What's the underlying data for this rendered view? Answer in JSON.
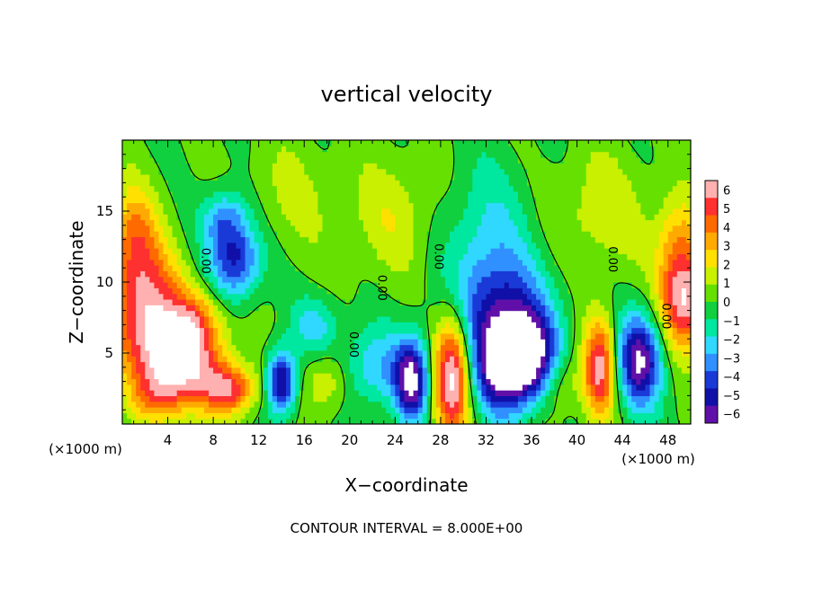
{
  "chart_data": {
    "type": "heatmap",
    "title": "vertical velocity",
    "xlabel": "X−coordinate",
    "ylabel": "Z−coordinate",
    "x_unit_label": "(×1000 m)",
    "x_unit_label_right": "(×1000 m)",
    "footer": "CONTOUR INTERVAL = 8.000E+00",
    "xlim": [
      0,
      50
    ],
    "ylim": [
      0,
      20
    ],
    "x_ticks": [
      "4",
      "8",
      "12",
      "16",
      "20",
      "24",
      "28",
      "32",
      "36",
      "40",
      "44",
      "48"
    ],
    "x_tick_values": [
      4,
      8,
      12,
      16,
      20,
      24,
      28,
      32,
      36,
      40,
      44,
      48
    ],
    "y_ticks": [
      "5",
      "10",
      "15"
    ],
    "y_tick_values": [
      5,
      10,
      15
    ],
    "colorbar": {
      "ticks": [
        "6",
        "5",
        "4",
        "3",
        "2",
        "1",
        "0",
        "−1",
        "−2",
        "−3",
        "−4",
        "−5",
        "−6"
      ],
      "range": [
        -6,
        6
      ],
      "colors": [
        "#ffb0b0",
        "#ff3030",
        "#ff6a00",
        "#ffaa00",
        "#ffe000",
        "#c8f000",
        "#66e000",
        "#10d040",
        "#00e8a0",
        "#30d8ff",
        "#3090ff",
        "#1a3ad8",
        "#1010a8",
        "#6010a8"
      ]
    },
    "contour_labels": [
      {
        "text": "0.00",
        "x": 7.0,
        "z": 11.5
      },
      {
        "text": "0.00",
        "x": 22.5,
        "z": 9.6
      },
      {
        "text": "0.00",
        "x": 20.0,
        "z": 5.6
      },
      {
        "text": "0.00",
        "x": 27.5,
        "z": 11.8
      },
      {
        "text": "0.00",
        "x": 42.8,
        "z": 11.6
      },
      {
        "text": "0.00",
        "x": 47.5,
        "z": 7.6
      }
    ],
    "features": [
      {
        "w": 6.5,
        "x": 5.0,
        "z": 4.5,
        "sx": 2.6,
        "sz": 2.4
      },
      {
        "w": 5.0,
        "x": 2.0,
        "z": 8.5,
        "sx": 2.2,
        "sz": 3.0
      },
      {
        "w": 3.0,
        "x": 1.0,
        "z": 13.5,
        "sx": 1.5,
        "sz": 2.5
      },
      {
        "w": 4.5,
        "x": 9.5,
        "z": 2.5,
        "sx": 1.6,
        "sz": 1.2
      },
      {
        "w": 2.0,
        "x": 6.5,
        "z": 7.5,
        "sx": 1.5,
        "sz": 1.5
      },
      {
        "w": -4.5,
        "x": 10.0,
        "z": 11.5,
        "sx": 1.6,
        "sz": 1.8
      },
      {
        "w": -3.0,
        "x": 9.0,
        "z": 14.5,
        "sx": 1.5,
        "sz": 1.5
      },
      {
        "w": -5.5,
        "x": 14.0,
        "z": 3.0,
        "sx": 0.9,
        "sz": 1.6
      },
      {
        "w": 2.0,
        "x": 18.0,
        "z": 3.0,
        "sx": 1.4,
        "sz": 1.6
      },
      {
        "w": -2.5,
        "x": 22.5,
        "z": 4.0,
        "sx": 2.5,
        "sz": 2.0
      },
      {
        "w": -5.5,
        "x": 25.5,
        "z": 3.0,
        "sx": 1.0,
        "sz": 2.0
      },
      {
        "w": 6.5,
        "x": 29.0,
        "z": 3.5,
        "sx": 1.1,
        "sz": 3.2
      },
      {
        "w": -6.5,
        "x": 33.5,
        "z": 4.0,
        "sx": 1.8,
        "sz": 2.3
      },
      {
        "w": -5.5,
        "x": 36.0,
        "z": 4.8,
        "sx": 1.6,
        "sz": 2.0
      },
      {
        "w": -3.5,
        "x": 33.5,
        "z": 8.0,
        "sx": 3.0,
        "sz": 2.5
      },
      {
        "w": -2.0,
        "x": 32.0,
        "z": 12.5,
        "sx": 3.0,
        "sz": 4.0
      },
      {
        "w": 1.5,
        "x": 38.5,
        "z": 3.0,
        "sx": 1.4,
        "sz": 1.5
      },
      {
        "w": 5.5,
        "x": 42.0,
        "z": 4.0,
        "sx": 1.0,
        "sz": 2.5
      },
      {
        "w": -6.0,
        "x": 45.5,
        "z": 4.5,
        "sx": 1.4,
        "sz": 2.3
      },
      {
        "w": 5.5,
        "x": 49.5,
        "z": 8.5,
        "sx": 1.5,
        "sz": 2.3
      },
      {
        "w": 3.0,
        "x": 49.0,
        "z": 12.5,
        "sx": 1.5,
        "sz": 2.5
      },
      {
        "w": 1.5,
        "x": 24.0,
        "z": 14.5,
        "sx": 3.0,
        "sz": 3.0
      },
      {
        "w": 1.5,
        "x": 42.0,
        "z": 15.0,
        "sx": 3.0,
        "sz": 3.0
      },
      {
        "w": -2.0,
        "x": 17.0,
        "z": 7.0,
        "sx": 1.5,
        "sz": 1.5
      },
      {
        "w": 1.0,
        "x": 14.5,
        "z": 16.0,
        "sx": 3.0,
        "sz": 3.0
      },
      {
        "w": 2.0,
        "x": 3.0,
        "z": 2.0,
        "sx": 1.5,
        "sz": 1.2
      }
    ]
  }
}
